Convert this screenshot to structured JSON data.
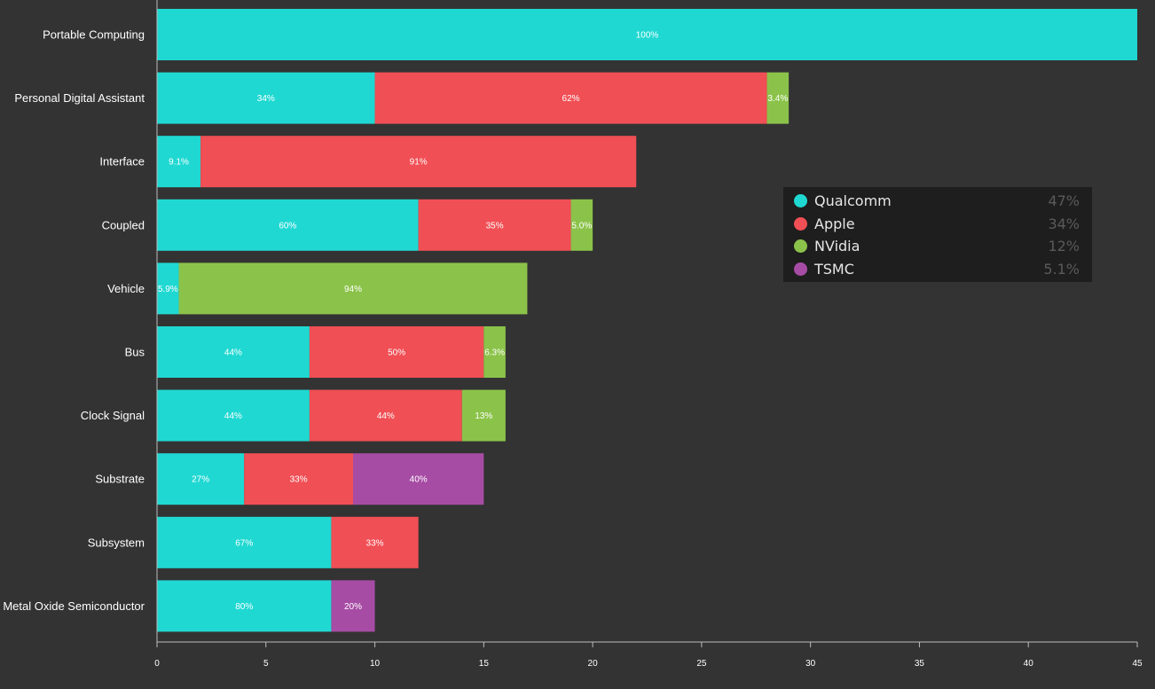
{
  "chart_data": {
    "type": "bar",
    "orientation": "horizontal",
    "stacked": true,
    "categories": [
      "Portable Computing",
      "Personal Digital Assistant",
      "Interface",
      "Coupled",
      "Vehicle",
      "Bus",
      "Clock Signal",
      "Substrate",
      "Subsystem",
      "Metal Oxide Semiconductor"
    ],
    "series": [
      {
        "name": "Qualcomm",
        "color": "#20d8d2",
        "values": [
          45,
          10,
          2,
          12,
          1,
          7,
          7,
          4,
          8,
          8
        ],
        "labels": [
          "100%",
          "34%",
          "9.1%",
          "60%",
          "5.9%",
          "44%",
          "44%",
          "27%",
          "67%",
          "80%"
        ]
      },
      {
        "name": "Apple",
        "color": "#f04f55",
        "values": [
          0,
          18,
          20,
          7,
          0,
          8,
          7,
          5,
          4,
          0
        ],
        "labels": [
          "",
          "62%",
          "91%",
          "35%",
          "",
          "50%",
          "44%",
          "33%",
          "33%",
          ""
        ]
      },
      {
        "name": "NVidia",
        "color": "#8bc34a",
        "values": [
          0,
          1,
          0,
          1,
          16,
          1,
          2,
          0,
          0,
          0
        ],
        "labels": [
          "",
          "3.4%",
          "",
          "5.0%",
          "94%",
          "6.3%",
          "13%",
          "",
          "",
          ""
        ]
      },
      {
        "name": "TSMC",
        "color": "#a74ca5",
        "values": [
          0,
          0,
          0,
          0,
          0,
          0,
          0,
          6,
          0,
          2
        ],
        "labels": [
          "",
          "",
          "",
          "",
          "",
          "",
          "",
          "40%",
          "",
          "20%"
        ]
      }
    ],
    "xlim": [
      0,
      45
    ],
    "xticks": [
      "0",
      "5",
      "10",
      "15",
      "20",
      "25",
      "30",
      "35",
      "40",
      "45"
    ],
    "grid": false,
    "legend_position": "right"
  },
  "legend": {
    "items": [
      {
        "name": "Qualcomm",
        "pct": "47%",
        "color": "#20d8d2"
      },
      {
        "name": "Apple",
        "pct": "34%",
        "color": "#f04f55"
      },
      {
        "name": "NVidia",
        "pct": "12%",
        "color": "#8bc34a"
      },
      {
        "name": "TSMC",
        "pct": "5.1%",
        "color": "#a74ca5"
      }
    ]
  }
}
